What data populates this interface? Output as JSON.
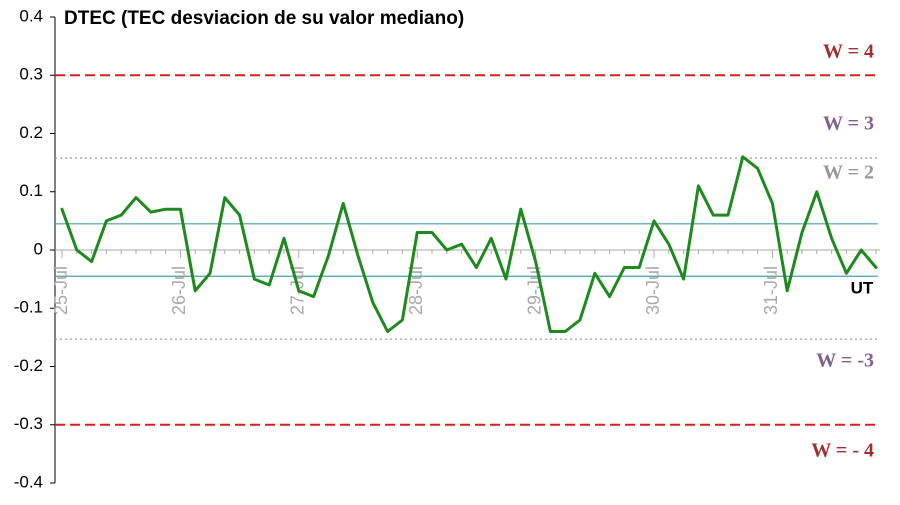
{
  "chart_data": {
    "type": "line",
    "title": "DTEC (TEC desviacion de su valor mediano)",
    "x_unit_label": "UT",
    "categories": [
      "25-Jul",
      null,
      null,
      null,
      null,
      null,
      null,
      null,
      "26-Jul",
      null,
      null,
      null,
      null,
      null,
      null,
      null,
      "27-Jul",
      null,
      null,
      null,
      null,
      null,
      null,
      null,
      "28-Jul",
      null,
      null,
      null,
      null,
      null,
      null,
      null,
      "29-Jul",
      null,
      null,
      null,
      null,
      null,
      null,
      null,
      "30-Jul",
      null,
      null,
      null,
      null,
      null,
      null,
      null,
      "31-Jul",
      null,
      null,
      null,
      null,
      null,
      null,
      null
    ],
    "values": [
      0.07,
      0.0,
      -0.02,
      0.05,
      0.06,
      0.09,
      0.065,
      0.07,
      0.07,
      -0.07,
      -0.04,
      0.09,
      0.06,
      -0.05,
      -0.06,
      0.02,
      -0.07,
      -0.08,
      -0.01,
      0.08,
      -0.01,
      -0.09,
      -0.14,
      -0.12,
      0.03,
      0.03,
      0.0,
      0.01,
      -0.03,
      0.02,
      -0.05,
      0.07,
      -0.02,
      -0.14,
      -0.14,
      -0.12,
      -0.04,
      -0.08,
      -0.03,
      -0.03,
      0.05,
      0.01,
      -0.05,
      0.11,
      0.06,
      0.06,
      0.16,
      0.14,
      0.08,
      -0.07,
      0.03,
      0.1,
      0.02,
      -0.04,
      0.0,
      -0.03
    ],
    "color": "#1e8a1e",
    "ylim": [
      -0.4,
      0.4
    ],
    "yticks": [
      -0.4,
      -0.3,
      -0.2,
      -0.1,
      0,
      0.1,
      0.2,
      0.3,
      0.4
    ],
    "reference_lines": [
      {
        "value": 0.3,
        "color": "#d42020",
        "style": "dashed"
      },
      {
        "value": 0.158,
        "color": "#999999",
        "style": "dotted"
      },
      {
        "value": 0.045,
        "color": "#4a9fb0",
        "style": "solid"
      },
      {
        "value": -0.045,
        "color": "#4a9fb0",
        "style": "solid"
      },
      {
        "value": -0.153,
        "color": "#999999",
        "style": "dotted"
      },
      {
        "value": -0.3,
        "color": "#d42020",
        "style": "dashed"
      }
    ],
    "region_labels": [
      {
        "text": "W = 4",
        "color": "#a03030"
      },
      {
        "text": "W = 3",
        "color": "#806090"
      },
      {
        "text": "W = 2",
        "color": "#999999"
      },
      {
        "text": "W = -3",
        "color": "#806090"
      },
      {
        "text": "W = - 4",
        "color": "#a03030"
      }
    ]
  }
}
